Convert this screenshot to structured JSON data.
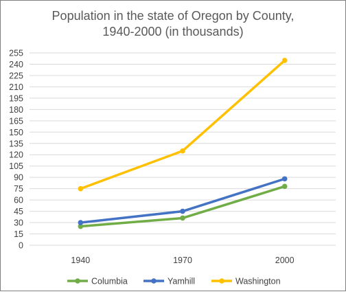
{
  "chart_data": {
    "type": "line",
    "title_lines": [
      "Population in the state of Oregon by County,",
      "1940-2000 (in thousands)"
    ],
    "xlabel": "",
    "ylabel": "",
    "categories": [
      "1940",
      "1970",
      "2000"
    ],
    "y_ticks": [
      "0",
      "15",
      "30",
      "45",
      "60",
      "75",
      "90",
      "105",
      "120",
      "135",
      "150",
      "165",
      "180",
      "195",
      "210",
      "225",
      "240",
      "255"
    ],
    "ylim": [
      0,
      255
    ],
    "grid": true,
    "legend_position": "bottom",
    "series": [
      {
        "name": "Columbia",
        "color": "#70ad47",
        "values": [
          25,
          36,
          78
        ]
      },
      {
        "name": "Yamhill",
        "color": "#4472c4",
        "values": [
          30,
          45,
          88
        ]
      },
      {
        "name": "Washington",
        "color": "#ffc000",
        "values": [
          75,
          125,
          245
        ]
      }
    ]
  }
}
